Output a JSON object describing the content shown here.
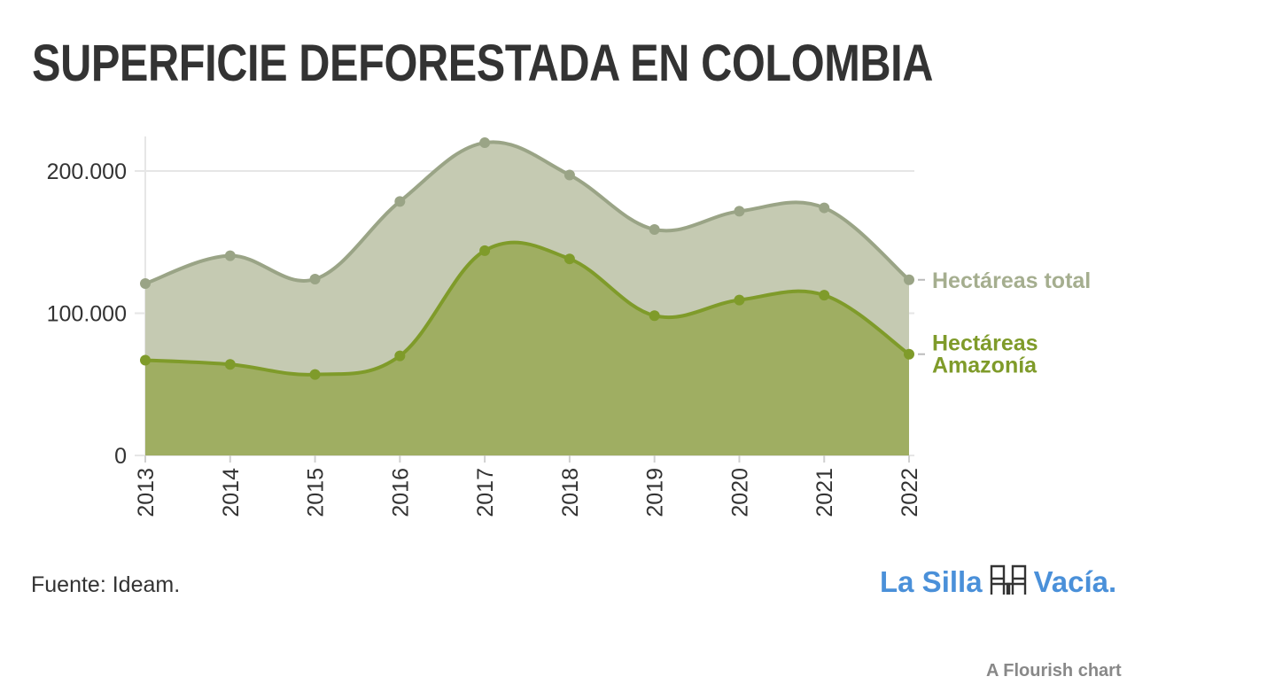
{
  "header": {
    "title": "SUPERFICIE DEFORESTADA EN COLOMBIA"
  },
  "footer": {
    "source": "Fuente: Ideam.",
    "logo_left": "La Silla",
    "logo_right": "Vacía.",
    "logo_icon": "chairs-icon",
    "credit": "A Flourish chart"
  },
  "chart_data": {
    "type": "area",
    "x": [
      "2013",
      "2014",
      "2015",
      "2016",
      "2017",
      "2018",
      "2019",
      "2020",
      "2021",
      "2022"
    ],
    "series": [
      {
        "name": "Hectáreas total",
        "values": [
          120900,
          140400,
          124000,
          178600,
          219900,
          197200,
          158900,
          171700,
          174100,
          123500
        ],
        "color": "#9aa486"
      },
      {
        "name": "Hectáreas Amazonía",
        "values": [
          67000,
          64000,
          56900,
          70000,
          144000,
          138200,
          98300,
          109300,
          112700,
          71200
        ],
        "color": "#7f9b2a"
      }
    ],
    "ylim": [
      0,
      230000
    ],
    "yticks": [
      0,
      100000,
      200000
    ],
    "ytick_labels": [
      "0",
      "100.000",
      "200.000"
    ],
    "grid": true,
    "legend": "direct-labels-right"
  }
}
